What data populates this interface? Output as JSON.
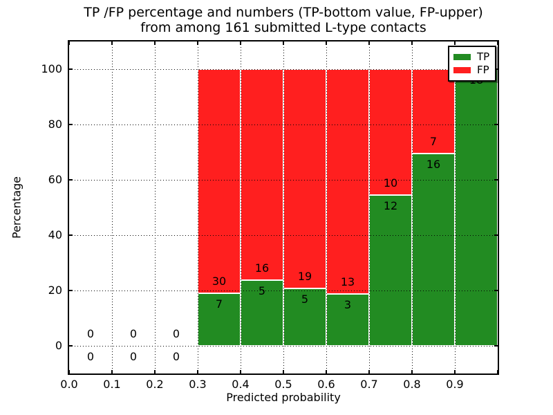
{
  "chart_data": {
    "type": "bar",
    "stacked": true,
    "title_line1": "TP /FP percentage and numbers (TP-bottom value, FP-upper)",
    "title_line2": "from among 161 submitted L-type contacts",
    "xlabel": "Predicted probability",
    "ylabel": "Percentage",
    "xlim": [
      0.0,
      1.0
    ],
    "ylim": [
      -10,
      110
    ],
    "grid": true,
    "legend_position": "upper right",
    "x_tick_labels": [
      "0.0",
      "0.1",
      "0.2",
      "0.3",
      "0.4",
      "0.5",
      "0.6",
      "0.7",
      "0.8",
      "0.9"
    ],
    "y_tick_labels": [
      "0",
      "20",
      "40",
      "60",
      "80",
      "100"
    ],
    "series": [
      {
        "name": "TP",
        "color": "#228b22"
      },
      {
        "name": "FP",
        "color": "#ff1f1f"
      }
    ],
    "bins": [
      {
        "x_start": 0.0,
        "x_end": 0.1,
        "tp": 0,
        "fp": 0,
        "tp_pct": null
      },
      {
        "x_start": 0.1,
        "x_end": 0.2,
        "tp": 0,
        "fp": 0,
        "tp_pct": null
      },
      {
        "x_start": 0.2,
        "x_end": 0.3,
        "tp": 0,
        "fp": 0,
        "tp_pct": null
      },
      {
        "x_start": 0.3,
        "x_end": 0.4,
        "tp": 7,
        "fp": 30,
        "tp_pct": 18.92
      },
      {
        "x_start": 0.4,
        "x_end": 0.5,
        "tp": 5,
        "fp": 16,
        "tp_pct": 23.81
      },
      {
        "x_start": 0.5,
        "x_end": 0.6,
        "tp": 5,
        "fp": 19,
        "tp_pct": 20.83
      },
      {
        "x_start": 0.6,
        "x_end": 0.7,
        "tp": 3,
        "fp": 13,
        "tp_pct": 18.75
      },
      {
        "x_start": 0.7,
        "x_end": 0.8,
        "tp": 12,
        "fp": 10,
        "tp_pct": 54.55
      },
      {
        "x_start": 0.8,
        "x_end": 0.9,
        "tp": 16,
        "fp": 7,
        "tp_pct": 69.57
      },
      {
        "x_start": 0.9,
        "x_end": 1.0,
        "tp": 18,
        "fp": 0,
        "tp_pct": 100.0
      }
    ]
  }
}
